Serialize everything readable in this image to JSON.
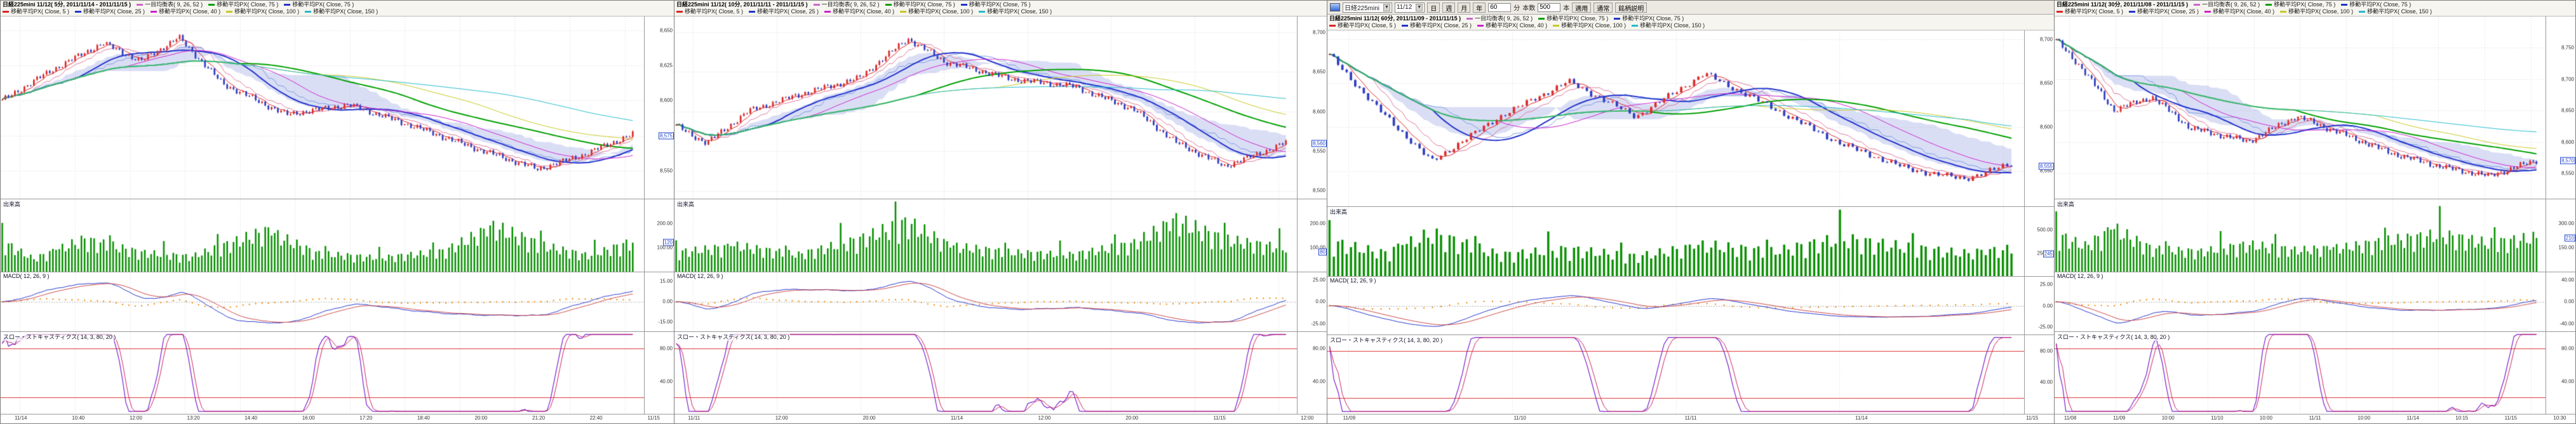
{
  "colors": {
    "candle_up": "#d93030",
    "candle_down": "#3340c0",
    "volume_bar": "#089000",
    "ma5": "#dd2222",
    "ma25": "#2233cc",
    "ma40": "#cc22cc",
    "ma75": "#00a000",
    "ma100": "#c8c822",
    "ma150": "#22bbcc",
    "cloud": "rgba(150,160,225,0.35)",
    "tenkan": "#dd7799",
    "kijun": "#7799dd",
    "macd_line": "#2233cc",
    "macd_signal": "#cc4444",
    "macd_hist": "#ee8800",
    "stoch_k": "#7722cc",
    "stoch_d": "#cc2266",
    "stoch_ref": "#dd3333",
    "grid": "#d9d9d9",
    "axis_text": "#333333"
  },
  "panels": [
    {
      "title": "日経225mini 11/12( 5分, 2011/11/14 - 2011/11/15 )",
      "legend_row1": [
        {
          "label": "一目均衡表( 9, 26, 52 )",
          "color": "#cc66cc"
        },
        {
          "label": "移動平均PX( Close, 75 )",
          "color": "#00a000"
        },
        {
          "label": "移動平均PX( Close, 75 )",
          "color": "#2233cc"
        }
      ],
      "legend_row2": [
        {
          "label": "移動平均PX( Close, 5 )",
          "color": "#dd2222"
        },
        {
          "label": "移動平均PX( Close, 25 )",
          "color": "#2233cc"
        },
        {
          "label": "移動平均PX( Close, 40 )",
          "color": "#cc22cc"
        },
        {
          "label": "移動平均PX( Close, 100 )",
          "color": "#c8c822"
        },
        {
          "label": "移動平均PX( Close, 150 )",
          "color": "#22bbcc"
        }
      ],
      "sections": {
        "volume_label": "出来高",
        "macd_label": "MACD( 12, 26, 9 )",
        "stoch_label": "スロー・ストキャスティクス( 14, 3, 80, 20 )"
      },
      "x_labels": [
        "11/14",
        "10:40",
        "12:00",
        "13:20",
        "14:40",
        "16:00",
        "17:20",
        "18:40",
        "20:00",
        "21:20",
        "22:40",
        "11/15"
      ],
      "chart_data": {
        "type": "candlestick",
        "bars": 200,
        "ylim": [
          8530,
          8660
        ],
        "yticks": [
          8650,
          8625,
          8600,
          8575,
          8550
        ],
        "price_keypoints": [
          [
            0,
            8600
          ],
          [
            0.08,
            8622
          ],
          [
            0.16,
            8641
          ],
          [
            0.22,
            8628
          ],
          [
            0.28,
            8645
          ],
          [
            0.35,
            8612
          ],
          [
            0.45,
            8590
          ],
          [
            0.55,
            8597
          ],
          [
            0.65,
            8582
          ],
          [
            0.75,
            8566
          ],
          [
            0.85,
            8551
          ],
          [
            0.92,
            8561
          ],
          [
            1,
            8576
          ]
        ],
        "last_price": 8575,
        "indicators": {
          "ichimoku": [
            9,
            26,
            52
          ],
          "moving_averages": [
            5,
            25,
            40,
            75,
            100,
            150
          ]
        },
        "volume": {
          "max": 300,
          "ticks": [
            200,
            100
          ],
          "profile": [
            [
              0,
              140
            ],
            [
              0.05,
              60
            ],
            [
              0.13,
              150
            ],
            [
              0.22,
              90
            ],
            [
              0.3,
              70
            ],
            [
              0.42,
              190
            ],
            [
              0.5,
              85
            ],
            [
              0.6,
              65
            ],
            [
              0.7,
              95
            ],
            [
              0.78,
              210
            ],
            [
              0.86,
              120
            ],
            [
              0.93,
              75
            ],
            [
              1,
              140
            ]
          ]
        },
        "macd": {
          "params": [
            12,
            26,
            9
          ],
          "ymax": 22,
          "ticks": [
            15,
            0,
            -15
          ]
        },
        "stochastics": {
          "params": [
            14,
            3,
            80,
            20
          ],
          "ticks": [
            80,
            40
          ],
          "ref_lines": [
            80,
            20
          ]
        }
      }
    },
    {
      "title": "日経225mini 11/12( 10分, 2011/11/11 - 2011/11/15 )",
      "legend_row1": [
        {
          "label": "一目均衡表( 9, 26, 52 )",
          "color": "#cc66cc"
        },
        {
          "label": "移動平均PX( Close, 75 )",
          "color": "#00a000"
        },
        {
          "label": "移動平均PX( Close, 75 )",
          "color": "#2233cc"
        }
      ],
      "legend_row2": [
        {
          "label": "移動平均PX( Close, 5 )",
          "color": "#dd2222"
        },
        {
          "label": "移動平均PX( Close, 25 )",
          "color": "#2233cc"
        },
        {
          "label": "移動平均PX( Close, 40 )",
          "color": "#cc22cc"
        },
        {
          "label": "移動平均PX( Close, 100 )",
          "color": "#c8c822"
        },
        {
          "label": "移動平均PX( Close, 150 )",
          "color": "#22bbcc"
        }
      ],
      "sections": {
        "volume_label": "出来高",
        "macd_label": "MACD( 12, 26, 9 )",
        "stoch_label": "スロー・ストキャスティクス( 14, 3, 80, 20 )"
      },
      "x_labels": [
        "11/11",
        "12:00",
        "20:00",
        "11/14",
        "12:00",
        "20:00",
        "11/15",
        "12:00"
      ],
      "chart_data": {
        "type": "candlestick",
        "bars": 190,
        "ylim": [
          8490,
          8720
        ],
        "yticks": [
          8700,
          8650,
          8600,
          8550,
          8500
        ],
        "price_keypoints": [
          [
            0,
            8582
          ],
          [
            0.05,
            8560
          ],
          [
            0.12,
            8601
          ],
          [
            0.2,
            8621
          ],
          [
            0.3,
            8642
          ],
          [
            0.38,
            8692
          ],
          [
            0.44,
            8663
          ],
          [
            0.55,
            8641
          ],
          [
            0.65,
            8632
          ],
          [
            0.75,
            8603
          ],
          [
            0.82,
            8561
          ],
          [
            0.9,
            8531
          ],
          [
            0.96,
            8548
          ],
          [
            1,
            8561
          ]
        ],
        "last_price": 8560,
        "indicators": {
          "ichimoku": [
            9,
            26,
            52
          ],
          "moving_averages": [
            5,
            25,
            40,
            75,
            100,
            150
          ]
        },
        "volume": {
          "max": 300,
          "ticks": [
            200,
            100
          ],
          "profile": [
            [
              0,
              90
            ],
            [
              0.1,
              120
            ],
            [
              0.2,
              80
            ],
            [
              0.3,
              150
            ],
            [
              0.38,
              230
            ],
            [
              0.45,
              120
            ],
            [
              0.55,
              90
            ],
            [
              0.65,
              80
            ],
            [
              0.75,
              130
            ],
            [
              0.82,
              240
            ],
            [
              0.9,
              150
            ],
            [
              1,
              110
            ]
          ]
        },
        "macd": {
          "params": [
            12,
            26,
            9
          ],
          "ymax": 34,
          "ticks": [
            25,
            0,
            -25
          ]
        },
        "stochastics": {
          "params": [
            14,
            3,
            80,
            20
          ],
          "ticks": [
            80,
            40
          ],
          "ref_lines": [
            80,
            20
          ]
        }
      }
    },
    {
      "title": "日経225mini 11/12( 60分, 2011/11/09 - 2011/11/15 )",
      "toolbar": {
        "symbol": "日経225mini",
        "contract": "11/12",
        "period_buttons": [
          "日",
          "週",
          "月",
          "年"
        ],
        "minute_value": "60",
        "minute_label": "分",
        "count_label": "本数",
        "count_value": "500",
        "count_unit": "本",
        "apply_label": "適用",
        "normal_label": "通常",
        "help_label": "銘柄説明"
      },
      "legend_row1": [
        {
          "label": "一目均衡表( 9, 26, 52 )",
          "color": "#cc66cc"
        },
        {
          "label": "移動平均PX( Close, 75 )",
          "color": "#00a000"
        },
        {
          "label": "移動平均PX( Close, 75 )",
          "color": "#2233cc"
        }
      ],
      "legend_row2": [
        {
          "label": "移動平均PX( Close, 5 )",
          "color": "#dd2222"
        },
        {
          "label": "移動平均PX( Close, 25 )",
          "color": "#2233cc"
        },
        {
          "label": "移動平均PX( Close, 40 )",
          "color": "#cc22cc"
        },
        {
          "label": "移動平均PX( Close, 100 )",
          "color": "#c8c822"
        },
        {
          "label": "移動平均PX( Close, 150 )",
          "color": "#22bbcc"
        }
      ],
      "sections": {
        "volume_label": "出来高",
        "macd_label": "MACD( 12, 26, 9 )",
        "stoch_label": "スロー・ストキャスティクス( 14, 3, 80, 20 )"
      },
      "x_labels": [
        "11/09",
        "11/10",
        "11/11",
        "11/14",
        "11/15"
      ],
      "chart_data": {
        "type": "candlestick",
        "bars": 160,
        "ylim": [
          8510,
          8710
        ],
        "yticks": [
          8700,
          8650,
          8600,
          8550
        ],
        "price_keypoints": [
          [
            0,
            8682
          ],
          [
            0.07,
            8622
          ],
          [
            0.15,
            8561
          ],
          [
            0.25,
            8612
          ],
          [
            0.35,
            8652
          ],
          [
            0.45,
            8612
          ],
          [
            0.55,
            8661
          ],
          [
            0.65,
            8622
          ],
          [
            0.75,
            8581
          ],
          [
            0.85,
            8552
          ],
          [
            0.93,
            8541
          ],
          [
            1,
            8558
          ]
        ],
        "last_price": 8555,
        "indicators": {
          "ichimoku": [
            9,
            26,
            52
          ],
          "moving_averages": [
            5,
            25,
            40,
            75,
            100,
            150
          ]
        },
        "volume": {
          "max": 750,
          "ticks": [
            500,
            250
          ],
          "profile": [
            [
              0,
              420
            ],
            [
              0.08,
              280
            ],
            [
              0.15,
              520
            ],
            [
              0.25,
              260
            ],
            [
              0.35,
              330
            ],
            [
              0.45,
              240
            ],
            [
              0.55,
              380
            ],
            [
              0.65,
              300
            ],
            [
              0.75,
              460
            ],
            [
              0.85,
              350
            ],
            [
              0.93,
              280
            ],
            [
              1,
              330
            ]
          ]
        },
        "macd": {
          "params": [
            12,
            26,
            9
          ],
          "ymax": 34,
          "ticks": [
            25,
            0,
            -25
          ]
        },
        "stochastics": {
          "params": [
            14,
            3,
            80,
            20
          ],
          "ticks": [
            80,
            40
          ],
          "ref_lines": [
            80,
            20
          ]
        }
      }
    },
    {
      "title": "日経225mini 11/12( 30分, 2011/11/08 - 2011/11/15 )",
      "legend_row1": [
        {
          "label": "一目均衡表( 9, 26, 52 )",
          "color": "#cc66cc"
        },
        {
          "label": "移動平均PX( Close, 75 )",
          "color": "#00a000"
        },
        {
          "label": "移動平均PX( Close, 75 )",
          "color": "#2233cc"
        }
      ],
      "legend_row2": [
        {
          "label": "移動平均PX( Close, 5 )",
          "color": "#dd2222"
        },
        {
          "label": "移動平均PX( Close, 25 )",
          "color": "#2233cc"
        },
        {
          "label": "移動平均PX( Close, 40 )",
          "color": "#cc22cc"
        },
        {
          "label": "移動平均PX( Close, 100 )",
          "color": "#c8c822"
        },
        {
          "label": "移動平均PX( Close, 150 )",
          "color": "#22bbcc"
        }
      ],
      "sections": {
        "volume_label": "出来高",
        "macd_label": "MACD( 12, 26, 9 )",
        "stoch_label": "スロー・ストキャスティクス( 14, 3, 80, 20 )"
      },
      "x_labels": [
        "11/08",
        "11/09",
        "10:00",
        "11/10",
        "10:00",
        "11/11",
        "10:00",
        "11/14",
        "10:15",
        "11/15",
        "10:30"
      ],
      "chart_data": {
        "type": "candlestick",
        "bars": 150,
        "ylim": [
          8510,
          8800
        ],
        "yticks": [
          8750,
          8700,
          8650,
          8600,
          8550
        ],
        "price_keypoints": [
          [
            0,
            8762
          ],
          [
            0.05,
            8721
          ],
          [
            0.12,
            8651
          ],
          [
            0.2,
            8672
          ],
          [
            0.28,
            8622
          ],
          [
            0.4,
            8601
          ],
          [
            0.5,
            8641
          ],
          [
            0.6,
            8612
          ],
          [
            0.7,
            8582
          ],
          [
            0.8,
            8561
          ],
          [
            0.9,
            8546
          ],
          [
            1,
            8571
          ]
        ],
        "last_price": 8570,
        "indicators": {
          "ichimoku": [
            9,
            26,
            52
          ],
          "moving_averages": [
            5,
            25,
            40,
            75,
            100,
            150
          ]
        },
        "volume": {
          "max": 450,
          "ticks": [
            300,
            150
          ],
          "profile": [
            [
              0,
              260
            ],
            [
              0.06,
              180
            ],
            [
              0.12,
              300
            ],
            [
              0.2,
              160
            ],
            [
              0.3,
              140
            ],
            [
              0.4,
              190
            ],
            [
              0.5,
              150
            ],
            [
              0.6,
              170
            ],
            [
              0.7,
              220
            ],
            [
              0.8,
              260
            ],
            [
              0.9,
              200
            ],
            [
              1,
              240
            ]
          ]
        },
        "macd": {
          "params": [
            12,
            26,
            9
          ],
          "ymax": 55,
          "ticks": [
            40,
            0,
            -40
          ]
        },
        "stochastics": {
          "params": [
            14,
            3,
            80,
            20
          ],
          "ticks": [
            80,
            40
          ],
          "ref_lines": [
            80,
            20
          ]
        }
      }
    }
  ]
}
